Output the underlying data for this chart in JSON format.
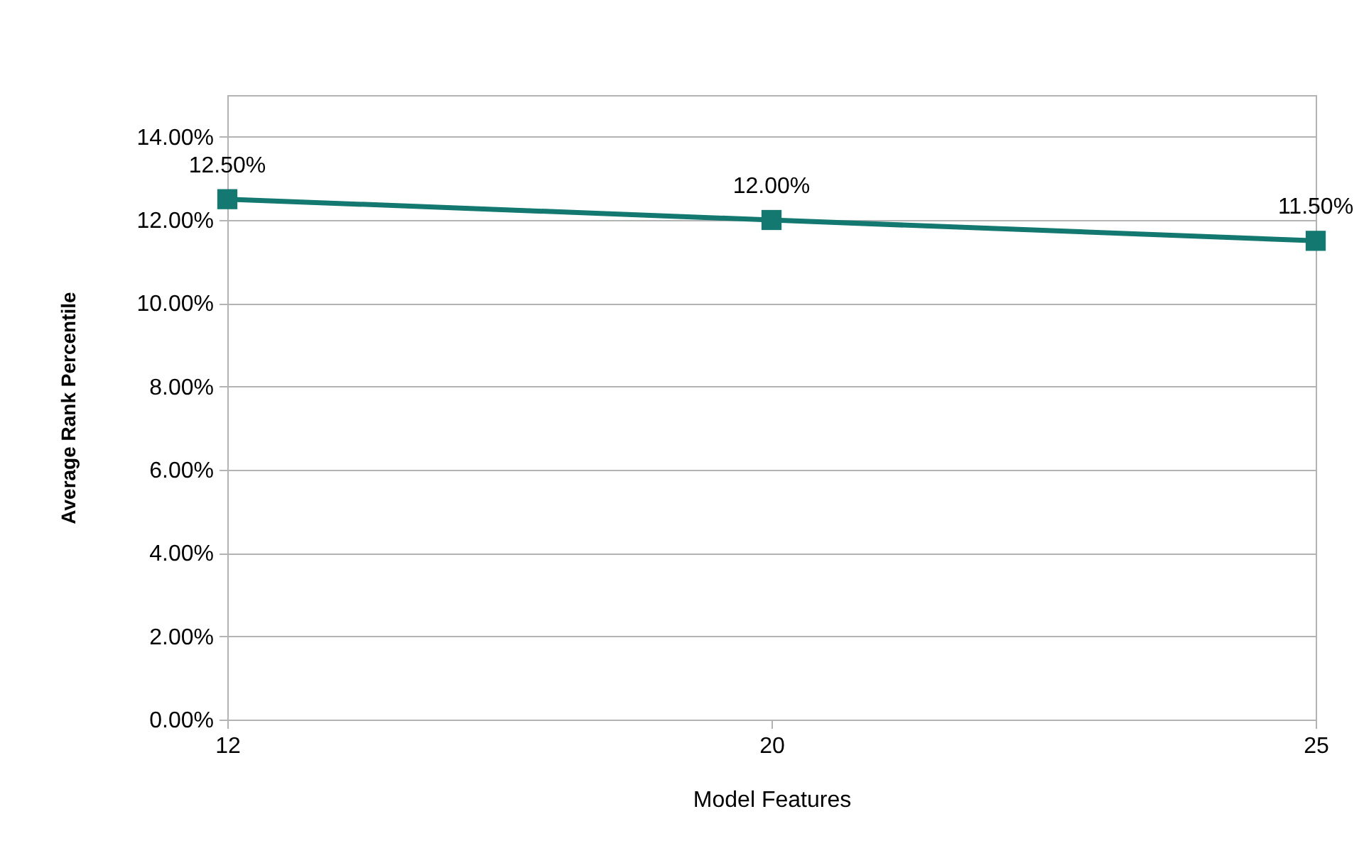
{
  "chart_data": {
    "type": "line",
    "xlabel": "Model Features",
    "ylabel": "Average Rank Percentile",
    "categories": [
      "12",
      "20",
      "25"
    ],
    "series": [
      {
        "color": "#137870",
        "values": [
          12.5,
          12.0,
          11.5
        ],
        "value_labels": [
          "12.50%",
          "12.00%",
          "11.50%"
        ]
      }
    ],
    "ylim": [
      0,
      15
    ],
    "yticks": [
      {
        "value": 0,
        "label": "0.00%"
      },
      {
        "value": 2,
        "label": "2.00%"
      },
      {
        "value": 4,
        "label": "4.00%"
      },
      {
        "value": 6,
        "label": "6.00%"
      },
      {
        "value": 8,
        "label": "8.00%"
      },
      {
        "value": 10,
        "label": "10.00%"
      },
      {
        "value": 12,
        "label": "12.00%"
      },
      {
        "value": 14,
        "label": "14.00%"
      }
    ],
    "grid": "y",
    "marker": "square",
    "line_style": "solid"
  }
}
